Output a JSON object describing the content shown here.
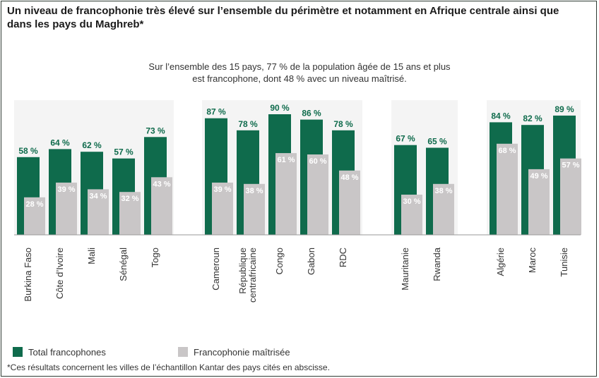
{
  "title": "Un niveau de francophonie très élevé sur l’ensemble du périmètre et notamment en Afrique centrale ainsi que dans les pays du Maghreb*",
  "subtitle_line1": "Sur l’ensemble des 15 pays, 77 % de la population âgée de 15 ans et plus",
  "subtitle_line2": "est francophone, dont 48 % avec un niveau maîtrisé.",
  "footnote": "*Ces résultats concernent les villes de l’échantillon Kantar des pays cités en abscisse.",
  "colors": {
    "total": "#0f6b4c",
    "maitrise": "#c9c6c7",
    "panel": "#f4f4f4"
  },
  "chart_data": {
    "type": "bar",
    "unit": "%",
    "groups": [
      [
        "Burkina Faso",
        "Côte d’Ivoire",
        "Mali",
        "Sénégal",
        "Togo"
      ],
      [
        "Cameroun",
        "République centrafricaine",
        "Congo",
        "Gabon",
        "RDC"
      ],
      [
        "Mauritanie",
        "Rwanda"
      ],
      [
        "Algérie",
        "Maroc",
        "Tunisie"
      ]
    ],
    "categories": [
      "Burkina Faso",
      "Côte d’Ivoire",
      "Mali",
      "Sénégal",
      "Togo",
      "Cameroun",
      "République centrafricaine",
      "Congo",
      "Gabon",
      "RDC",
      "Mauritanie",
      "Rwanda",
      "Algérie",
      "Maroc",
      "Tunisie"
    ],
    "series": [
      {
        "name": "Total francophones",
        "values": [
          58,
          64,
          62,
          57,
          73,
          87,
          78,
          90,
          86,
          78,
          67,
          65,
          84,
          82,
          89
        ]
      },
      {
        "name": "Francophonie maîtrisée",
        "values": [
          28,
          39,
          34,
          32,
          43,
          39,
          38,
          61,
          60,
          48,
          30,
          38,
          68,
          49,
          57
        ]
      }
    ],
    "legend": {
      "position": "bottom-left"
    }
  }
}
